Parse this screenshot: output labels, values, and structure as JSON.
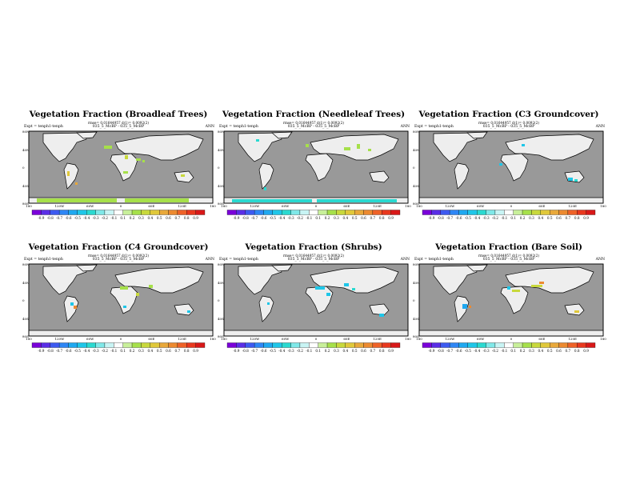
{
  "common": {
    "expt": "Expt = tenph1-tenph",
    "subtitle": "035_5_McBP - 035_5_McBP",
    "period": "ANN",
    "rmse": "rmse= 0.01644957 d(1)= 0.0092(2)",
    "lat_labels": [
      "80N",
      "40N",
      "0",
      "40S",
      "80S"
    ],
    "lon_labels": [
      "180",
      "120W",
      "60W",
      "0",
      "60E",
      "120E",
      "180"
    ],
    "colorbar_labels": [
      "-0.9",
      "-0.8",
      "-0.7",
      "-0.6",
      "-0.5",
      "-0.4",
      "-0.3",
      "-0.2",
      "-0.1",
      "0.1",
      "0.2",
      "0.3",
      "0.4",
      "0.5",
      "0.6",
      "0.7",
      "0.8",
      "0.9"
    ],
    "colorbar_colors": [
      "#7a00d9",
      "#5a2ee6",
      "#3d5af0",
      "#2e86f5",
      "#1fa8f0",
      "#1fc6e8",
      "#2ad9d0",
      "#7fe8e8",
      "#c8f4f4",
      "#ffffff",
      "#c8ef9a",
      "#a6e04a",
      "#c8d83c",
      "#e0c83a",
      "#e8a83a",
      "#ec8a30",
      "#ee6228",
      "#e8381e",
      "#d81818"
    ],
    "ocean_color": "#999999",
    "land_color": "#eeeeee"
  },
  "panels": [
    {
      "title": "Vegetation Fraction (Broadleaf Trees)"
    },
    {
      "title": "Vegetation Fraction (Needleleaf Trees)"
    },
    {
      "title": "Vegetation Fraction (C3 Groundcover)"
    },
    {
      "title": "Vegetation Fraction (C4 Groundcover)"
    },
    {
      "title": "Vegetation Fraction (Shrubs)"
    },
    {
      "title": "Vegetation Fraction (Bare Soil)"
    }
  ]
}
